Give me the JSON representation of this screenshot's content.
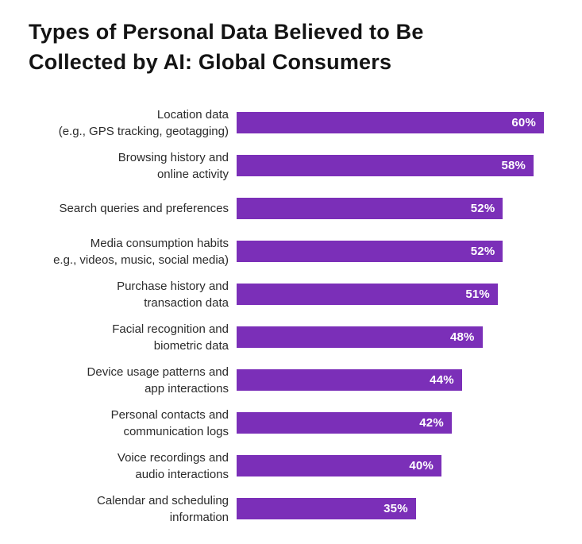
{
  "title_lines": "Types of Personal Data Believed to Be\nCollected by AI: Global Consumers",
  "colors": {
    "bar": "#7b2fb8",
    "title_text": "#141414",
    "label_text": "#2b2b2b",
    "value_text": "#ffffff",
    "background": "#ffffff"
  },
  "chart_data": {
    "type": "bar",
    "orientation": "horizontal",
    "title": "Types of Personal Data Believed to Be Collected by AI: Global Consumers",
    "categories": [
      "Location data\n(e.g., GPS tracking, geotagging)",
      "Browsing history and\nonline activity",
      "Search queries and preferences",
      "Media consumption habits\ne.g., videos, music, social media)",
      "Purchase history and\ntransaction data",
      "Facial recognition and\nbiometric data",
      "Device usage patterns and\napp interactions",
      "Personal contacts and\ncommunication logs",
      "Voice recordings and\naudio interactions",
      "Calendar and scheduling\ninformation"
    ],
    "values": [
      60,
      58,
      52,
      52,
      51,
      48,
      44,
      42,
      40,
      35
    ],
    "value_suffix": "%",
    "xlim": [
      0,
      60
    ],
    "max_value": 60,
    "grid": false,
    "legend": false,
    "bar_color": "#7b2fb8",
    "value_labels_inside_bar": true
  }
}
